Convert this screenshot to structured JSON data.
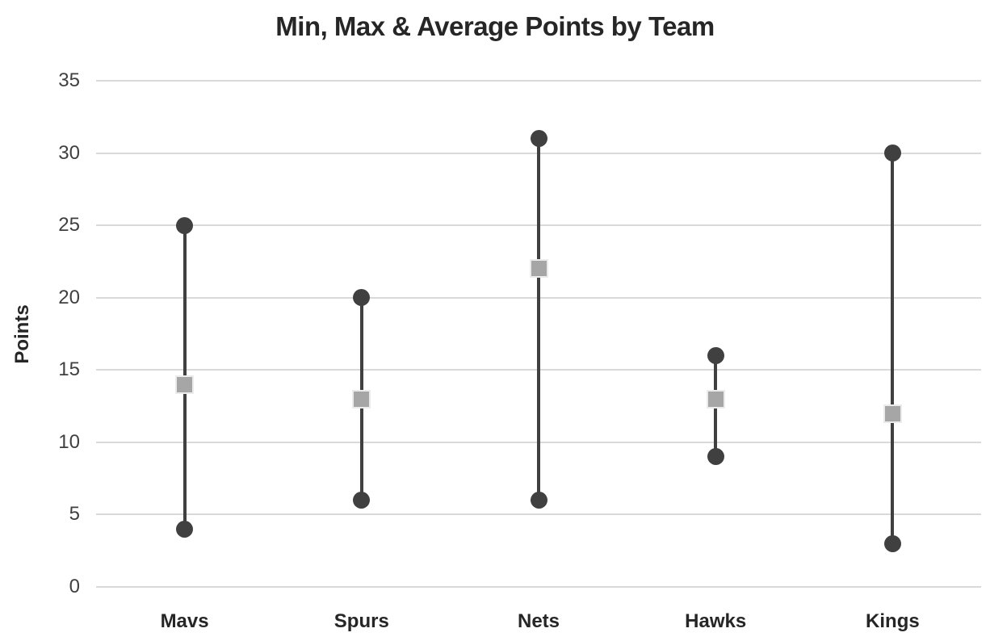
{
  "chart_data": {
    "type": "line",
    "subtype": "high-low-lines-with-markers",
    "title": "Min, Max & Average Points by Team",
    "xlabel": "",
    "ylabel": "Points",
    "categories": [
      "Mavs",
      "Spurs",
      "Nets",
      "Hawks",
      "Kings"
    ],
    "series": [
      {
        "name": "Max",
        "marker": "circle",
        "color": "#404040",
        "values": [
          25,
          20,
          31,
          16,
          30
        ]
      },
      {
        "name": "Average",
        "marker": "square",
        "color": "#a6a6a6",
        "values": [
          14,
          13,
          22,
          13,
          12
        ]
      },
      {
        "name": "Min",
        "marker": "circle",
        "color": "#404040",
        "values": [
          4,
          6,
          6,
          9,
          3
        ]
      }
    ],
    "ylim": [
      0,
      35
    ],
    "yticks": [
      0,
      5,
      10,
      15,
      20,
      25,
      30,
      35
    ],
    "grid": true,
    "legend": "none",
    "colors": {
      "background": "#ffffff",
      "gridline": "#d9d9d9",
      "hilo_line": "#404040",
      "minmax_marker": "#404040",
      "avg_marker_fill": "#a6a6a6",
      "avg_marker_border": "#ebebeb",
      "title_text": "#262626",
      "tick_text": "#404040",
      "category_text": "#262626"
    }
  }
}
